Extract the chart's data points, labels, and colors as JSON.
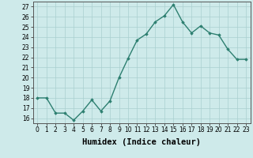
{
  "x": [
    0,
    1,
    2,
    3,
    4,
    5,
    6,
    7,
    8,
    9,
    10,
    11,
    12,
    13,
    14,
    15,
    16,
    17,
    18,
    19,
    20,
    21,
    22,
    23
  ],
  "y": [
    18,
    18,
    16.5,
    16.5,
    15.8,
    16.7,
    17.8,
    16.7,
    17.7,
    20.0,
    21.9,
    23.7,
    24.3,
    25.5,
    26.1,
    27.2,
    25.5,
    24.4,
    25.1,
    24.4,
    24.2,
    22.8,
    21.8,
    21.8
  ],
  "xlabel": "Humidex (Indice chaleur)",
  "ylabel": "",
  "line_color": "#2d7f70",
  "marker": "D",
  "marker_size": 1.8,
  "bg_color": "#ceeaea",
  "grid_color": "#aacfcf",
  "ylim": [
    15.5,
    27.5
  ],
  "xlim": [
    -0.5,
    23.5
  ],
  "yticks": [
    16,
    17,
    18,
    19,
    20,
    21,
    22,
    23,
    24,
    25,
    26,
    27
  ],
  "xticks": [
    0,
    1,
    2,
    3,
    4,
    5,
    6,
    7,
    8,
    9,
    10,
    11,
    12,
    13,
    14,
    15,
    16,
    17,
    18,
    19,
    20,
    21,
    22,
    23
  ],
  "xtick_labels": [
    "0",
    "1",
    "2",
    "3",
    "4",
    "5",
    "6",
    "7",
    "8",
    "9",
    "10",
    "11",
    "12",
    "13",
    "14",
    "15",
    "16",
    "17",
    "18",
    "19",
    "20",
    "21",
    "22",
    "23"
  ],
  "line_width": 1.0,
  "tick_fontsize": 5.5,
  "xlabel_fontsize": 7.5
}
